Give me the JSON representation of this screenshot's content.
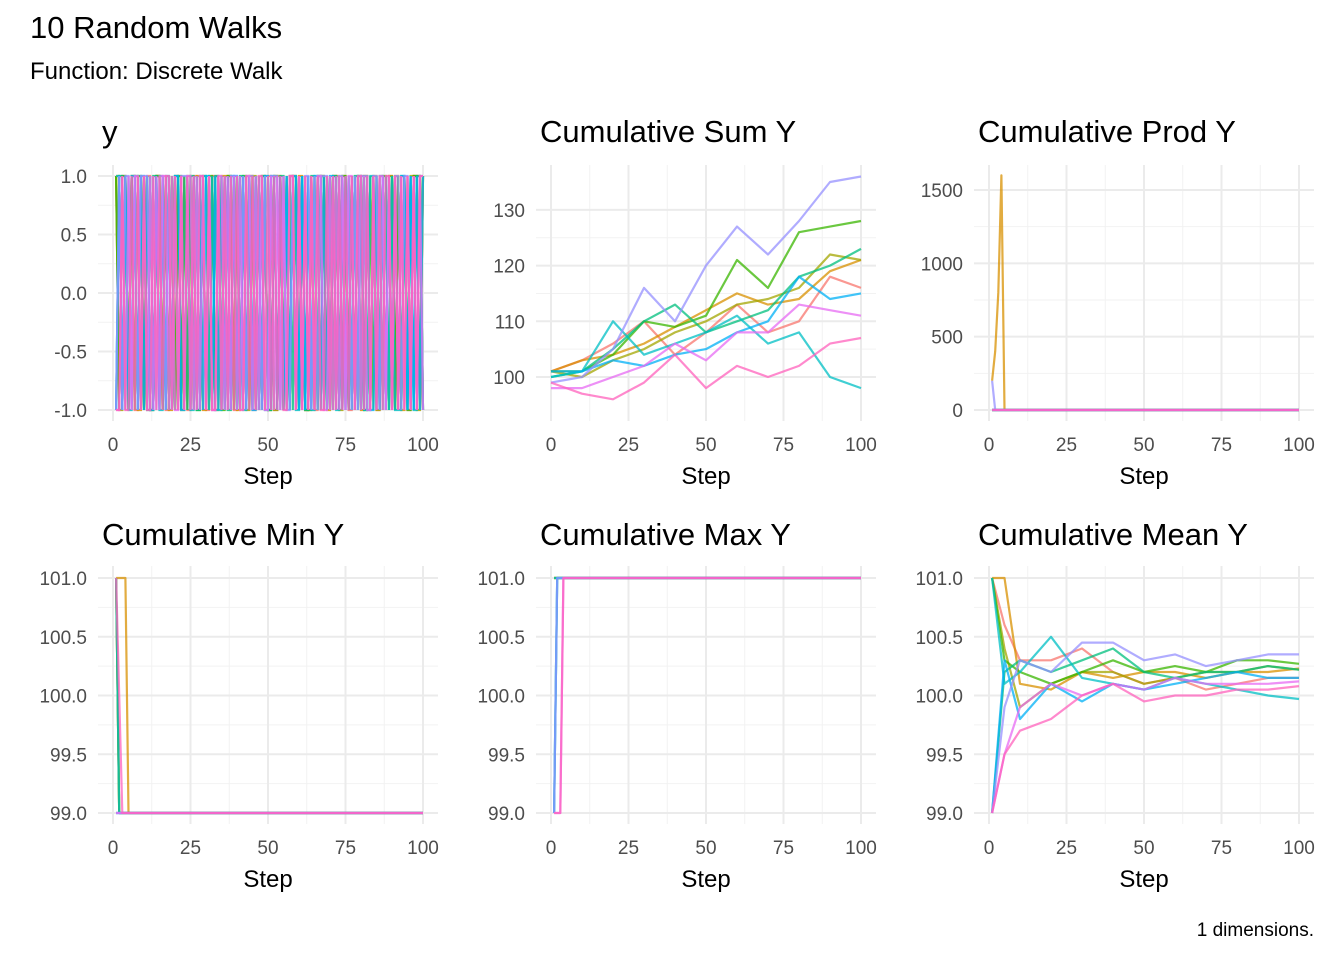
{
  "title": "10 Random Walks",
  "subtitle": "Function: Discrete Walk",
  "caption": "1 dimensions.",
  "series_colors": [
    "#F8766D",
    "#D89000",
    "#A3A500",
    "#39B600",
    "#00BF7D",
    "#00BFC4",
    "#00B0F6",
    "#9590FF",
    "#E76BF3",
    "#FF62BC"
  ],
  "chart_data": [
    {
      "type": "line",
      "title": "y",
      "xlabel": "Step",
      "xlim": [
        1,
        100
      ],
      "x_ticks": [
        "0",
        "25",
        "50",
        "75",
        "100"
      ],
      "y_ticks": [
        "1.0",
        "0.5",
        "0.0",
        "-0.5",
        "-1.0"
      ],
      "ylim": [
        -1,
        1
      ],
      "grid": true,
      "note": "",
      "steps_signs": [
        "+-++-+--+-++-+++--+-+-+--++-+--+++-+-+--+-++--+-+++--+-+-++-+--+--++-+-++-+--+-+++-+--+-++-+-+--++-+",
        "++-+-++--+-+-++-+--++-+-+-++--+-+-+++-+--+-++-+-+--+++-+-+-++--+-+-+--++-++-+-+--+-++-+-+-++--+-++-+",
        "+--+-++-+-+--++-+-+-+--++-+-++-+--+-++-+-+--++-++-+--+-+-++-+--+-++-+-++--+-+-+-++-+--+-++-+-+-++--+",
        "+-++-+-++-+--++-+-+-++-+-+--+-++-+--++-+-++-+-+-+--++-+-++-+-+--+-++-+-+-++-+-++--+-+-++-+-+-+--+++-",
        "-++-+-++-+--++-+-+-++-+-++--+-+-++-+--+-++-+-+-++--+-++-+-+-+--++-+-+-++-+-+-++-+--+-++-+-+-++-+-++-",
        "++-+--+-++-+-+--++-+-+-+--+-++-+---+-++-+--+-+-+--++-+-+-+--+-+--++-+-+--+-+-+-+--++-+-+-+---+-+--+-",
        "-+-+-++-+-+--+-+-+-++--+-+-+-++-+-+-+-++-+-+--+-++-+-+-+-++-+-+-++-+-++-+-+-+-++-+--+-+-+-+-++-+-+-+",
        "-+-++-+-+++-+-++-+-+-+++-+-++-+--+-+-+++-+-++-+-+-+++-+--+-+-++-+-+++-+-++-+-+-+++-++-+-+-++-++-+-++",
        "--+-+-++-+-+-+-++-+--+-++-+-+-+--++-+-+-+-++-+-+--+-+-+-++-+-+-+-++--+-+-+-++-+-+--+-++-+-+-+-+-+-+-",
        "--+--+-+-+--+-+-++-+-+-+-+-++-+--+-+-+-+--+-+-++-+-+-+--++-+-+-+-+--+-+-+-+-+-++-+-+-+-++-+-+-+-+-++"
      ]
    },
    {
      "type": "line",
      "title": "Cumulative Sum Y",
      "xlabel": "Step",
      "x_ticks": [
        "0",
        "25",
        "50",
        "75",
        "100"
      ],
      "y_ticks": [
        "100",
        "110",
        "120",
        "130"
      ],
      "ylim": [
        93,
        137
      ],
      "grid": true,
      "x": [
        0,
        10,
        20,
        30,
        40,
        50,
        60,
        70,
        80,
        90,
        100
      ],
      "series": [
        {
          "values": [
            101,
            103,
            106,
            110,
            104,
            108,
            113,
            108,
            110,
            118,
            116
          ]
        },
        {
          "values": [
            101,
            103,
            104,
            106,
            109,
            112,
            115,
            113,
            114,
            119,
            121
          ]
        },
        {
          "values": [
            101,
            100,
            103,
            105,
            108,
            110,
            113,
            114,
            116,
            122,
            121
          ]
        },
        {
          "values": [
            101,
            101,
            104,
            110,
            109,
            111,
            121,
            116,
            126,
            127,
            128
          ]
        },
        {
          "values": [
            100,
            101,
            105,
            110,
            113,
            108,
            110,
            112,
            118,
            120,
            123
          ]
        },
        {
          "values": [
            100,
            101,
            110,
            104,
            106,
            108,
            111,
            106,
            108,
            100,
            98
          ]
        },
        {
          "values": [
            101,
            101,
            103,
            102,
            104,
            105,
            108,
            110,
            118,
            114,
            115
          ]
        },
        {
          "values": [
            99,
            100,
            105,
            116,
            110,
            120,
            127,
            122,
            128,
            135,
            136
          ]
        },
        {
          "values": [
            98,
            98,
            100,
            102,
            106,
            103,
            108,
            108,
            113,
            112,
            111
          ]
        },
        {
          "values": [
            99,
            97,
            96,
            99,
            104,
            98,
            102,
            100,
            102,
            106,
            107
          ]
        }
      ]
    },
    {
      "type": "line",
      "title": "Cumulative Prod Y",
      "xlabel": "Step",
      "x_ticks": [
        "0",
        "25",
        "50",
        "75",
        "100"
      ],
      "y_ticks": [
        "0",
        "500",
        "1000",
        "1500"
      ],
      "ylim": [
        -60,
        1640
      ],
      "grid": true,
      "series": [
        {
          "points": [
            [
              1,
              0
            ],
            [
              100,
              0
            ]
          ]
        },
        {
          "points": [
            [
              1,
              200
            ],
            [
              2,
              400
            ],
            [
              3,
              800
            ],
            [
              4,
              1600
            ],
            [
              5,
              0
            ],
            [
              100,
              0
            ]
          ]
        },
        {
          "points": [
            [
              1,
              0
            ],
            [
              100,
              0
            ]
          ]
        },
        {
          "points": [
            [
              1,
              0
            ],
            [
              100,
              0
            ]
          ]
        },
        {
          "points": [
            [
              1,
              0
            ],
            [
              100,
              0
            ]
          ]
        },
        {
          "points": [
            [
              1,
              0
            ],
            [
              100,
              0
            ]
          ]
        },
        {
          "points": [
            [
              1,
              0
            ],
            [
              100,
              0
            ]
          ]
        },
        {
          "points": [
            [
              1,
              200
            ],
            [
              2,
              0
            ],
            [
              100,
              0
            ]
          ]
        },
        {
          "points": [
            [
              1,
              0
            ],
            [
              100,
              0
            ]
          ]
        },
        {
          "points": [
            [
              1,
              0
            ],
            [
              100,
              0
            ]
          ]
        }
      ]
    },
    {
      "type": "line",
      "title": "Cumulative Min Y",
      "xlabel": "Step",
      "x_ticks": [
        "0",
        "25",
        "50",
        "75",
        "100"
      ],
      "y_ticks": [
        "101.0",
        "100.5",
        "100.0",
        "99.5",
        "99.0"
      ],
      "ylim": [
        98.95,
        101.05
      ],
      "grid": true,
      "series": [
        {
          "points": [
            [
              1,
              101
            ],
            [
              2,
              99
            ],
            [
              100,
              99
            ]
          ]
        },
        {
          "points": [
            [
              1,
              101
            ],
            [
              4,
              101
            ],
            [
              5,
              99
            ],
            [
              100,
              99
            ]
          ]
        },
        {
          "points": [
            [
              1,
              101
            ],
            [
              2,
              99
            ],
            [
              100,
              99
            ]
          ]
        },
        {
          "points": [
            [
              1,
              101
            ],
            [
              2,
              99
            ],
            [
              100,
              99
            ]
          ]
        },
        {
          "points": [
            [
              1,
              99
            ],
            [
              100,
              99
            ]
          ]
        },
        {
          "points": [
            [
              1,
              101
            ],
            [
              2,
              99
            ],
            [
              100,
              99
            ]
          ]
        },
        {
          "points": [
            [
              1,
              99
            ],
            [
              100,
              99
            ]
          ]
        },
        {
          "points": [
            [
              1,
              99
            ],
            [
              100,
              99
            ]
          ]
        },
        {
          "points": [
            [
              1,
              99
            ],
            [
              100,
              99
            ]
          ]
        },
        {
          "points": [
            [
              1,
              101
            ],
            [
              3,
              99
            ],
            [
              100,
              99
            ]
          ]
        }
      ]
    },
    {
      "type": "line",
      "title": "Cumulative Max Y",
      "xlabel": "Step",
      "x_ticks": [
        "0",
        "25",
        "50",
        "75",
        "100"
      ],
      "y_ticks": [
        "101.0",
        "100.5",
        "100.0",
        "99.5",
        "99.0"
      ],
      "ylim": [
        98.95,
        101.05
      ],
      "grid": true,
      "series": [
        {
          "points": [
            [
              1,
              101
            ],
            [
              100,
              101
            ]
          ]
        },
        {
          "points": [
            [
              1,
              101
            ],
            [
              100,
              101
            ]
          ]
        },
        {
          "points": [
            [
              1,
              101
            ],
            [
              100,
              101
            ]
          ]
        },
        {
          "points": [
            [
              1,
              101
            ],
            [
              100,
              101
            ]
          ]
        },
        {
          "points": [
            [
              1,
              99
            ],
            [
              2,
              101
            ],
            [
              100,
              101
            ]
          ]
        },
        {
          "points": [
            [
              1,
              101
            ],
            [
              100,
              101
            ]
          ]
        },
        {
          "points": [
            [
              1,
              99
            ],
            [
              2,
              101
            ],
            [
              100,
              101
            ]
          ]
        },
        {
          "points": [
            [
              1,
              99
            ],
            [
              2,
              101
            ],
            [
              100,
              101
            ]
          ]
        },
        {
          "points": [
            [
              1,
              99
            ],
            [
              3,
              99
            ],
            [
              4,
              101
            ],
            [
              100,
              101
            ]
          ]
        },
        {
          "points": [
            [
              1,
              99
            ],
            [
              3,
              99
            ],
            [
              4,
              101
            ],
            [
              100,
              101
            ]
          ]
        }
      ]
    },
    {
      "type": "line",
      "title": "Cumulative Mean Y",
      "xlabel": "Step",
      "x_ticks": [
        "0",
        "25",
        "50",
        "75",
        "100"
      ],
      "y_ticks": [
        "101.0",
        "100.5",
        "100.0",
        "99.5",
        "99.0"
      ],
      "ylim": [
        98.95,
        101.05
      ],
      "grid": true,
      "x": [
        1,
        5,
        10,
        20,
        30,
        40,
        50,
        60,
        70,
        80,
        90,
        100
      ],
      "series": [
        {
          "values": [
            101,
            100.6,
            100.3,
            100.3,
            100.4,
            100.2,
            100.1,
            100.15,
            100.05,
            100.1,
            100.15,
            100.15
          ]
        },
        {
          "values": [
            101,
            101,
            100.1,
            100.05,
            100.2,
            100.15,
            100.2,
            100.2,
            100.15,
            100.2,
            100.2,
            100.23
          ]
        },
        {
          "values": [
            101,
            100.4,
            99.9,
            100.1,
            100.2,
            100.2,
            100.1,
            100.15,
            100.2,
            100.2,
            100.25,
            100.22
          ]
        },
        {
          "values": [
            101,
            100.3,
            100.2,
            100.1,
            100.2,
            100.3,
            100.2,
            100.25,
            100.2,
            100.3,
            100.3,
            100.27
          ]
        },
        {
          "values": [
            99,
            100.2,
            100.3,
            100.2,
            100.3,
            100.4,
            100.2,
            100.15,
            100.2,
            100.2,
            100.25,
            100.22
          ]
        },
        {
          "values": [
            101,
            100.1,
            100.2,
            100.5,
            100.15,
            100.1,
            100.05,
            100.15,
            100.1,
            100.05,
            100.0,
            99.97
          ]
        },
        {
          "values": [
            99,
            100.3,
            99.8,
            100.1,
            99.95,
            100.1,
            100.05,
            100.1,
            100.15,
            100.2,
            100.15,
            100.15
          ]
        },
        {
          "values": [
            99,
            99.9,
            100.3,
            100.2,
            100.45,
            100.45,
            100.3,
            100.35,
            100.25,
            100.3,
            100.35,
            100.35
          ]
        },
        {
          "values": [
            99,
            99.5,
            99.9,
            100.1,
            100.0,
            100.1,
            100.05,
            100.15,
            100.1,
            100.1,
            100.1,
            100.12
          ]
        },
        {
          "values": [
            99,
            99.5,
            99.7,
            99.8,
            100.0,
            100.1,
            99.95,
            100.0,
            100.0,
            100.05,
            100.05,
            100.08
          ]
        }
      ]
    }
  ]
}
